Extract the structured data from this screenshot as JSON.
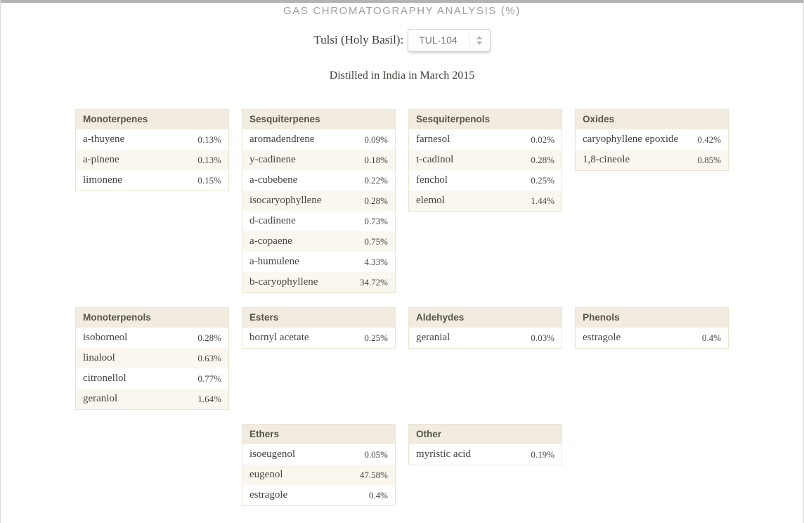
{
  "page": {
    "title": "GAS CHROMATOGRAPHY ANALYSIS (%)",
    "subtitle": "Distilled in India in March 2015"
  },
  "selector": {
    "label": "Tulsi (Holy Basil):",
    "value": "TUL-104"
  },
  "colors": {
    "header_beige": "#f1ecdf",
    "alt_row_cream": "#faf7ef",
    "table_border": "#e9e4d4",
    "title_gray": "#9e9e9e",
    "top_bar_gray": "#b3b3b3"
  },
  "tables": [
    {
      "title": "Monoterpenes",
      "row": 1,
      "col": 1,
      "rows": [
        {
          "name": "a-thuyene",
          "value": "0.13%"
        },
        {
          "name": "a-pinene",
          "value": "0.13%"
        },
        {
          "name": "limonene",
          "value": "0.15%"
        }
      ]
    },
    {
      "title": "Sesquiterpenes",
      "row": 1,
      "col": 2,
      "rows": [
        {
          "name": "aromadendrene",
          "value": "0.09%"
        },
        {
          "name": "y-cadinene",
          "value": "0.18%"
        },
        {
          "name": "a-cubebene",
          "value": "0.22%"
        },
        {
          "name": "isocaryophyllene",
          "value": "0.28%"
        },
        {
          "name": "d-cadinene",
          "value": "0.73%"
        },
        {
          "name": "a-copaene",
          "value": "0.75%"
        },
        {
          "name": "a-humulene",
          "value": "4.33%"
        },
        {
          "name": "b-caryophyllene",
          "value": "34.72%"
        }
      ]
    },
    {
      "title": "Sesquiterpenols",
      "row": 1,
      "col": 3,
      "rows": [
        {
          "name": "farnesol",
          "value": "0.02%"
        },
        {
          "name": "t-cadinol",
          "value": "0.28%"
        },
        {
          "name": "fenchol",
          "value": "0.25%"
        },
        {
          "name": "elemol",
          "value": "1.44%"
        }
      ]
    },
    {
      "title": "Oxides",
      "row": 1,
      "col": 4,
      "rows": [
        {
          "name": "caryophyllene epoxide",
          "value": "0.42%"
        },
        {
          "name": "1,8-cineole",
          "value": "0.85%"
        }
      ]
    },
    {
      "title": "Monoterpenols",
      "row": 2,
      "col": 1,
      "rows": [
        {
          "name": "isoborneol",
          "value": "0.28%"
        },
        {
          "name": "linalool",
          "value": "0.63%"
        },
        {
          "name": "citronellol",
          "value": "0.77%"
        },
        {
          "name": "geraniol",
          "value": "1.64%"
        }
      ]
    },
    {
      "title": "Esters",
      "row": 2,
      "col": 2,
      "rows": [
        {
          "name": "bornyl acetate",
          "value": "0.25%"
        }
      ]
    },
    {
      "title": "Aldehydes",
      "row": 2,
      "col": 3,
      "rows": [
        {
          "name": "geranial",
          "value": "0.03%"
        }
      ]
    },
    {
      "title": "Phenols",
      "row": 2,
      "col": 4,
      "rows": [
        {
          "name": "estragole",
          "value": "0.4%"
        }
      ]
    },
    {
      "title": "Ethers",
      "row": 3,
      "col": 2,
      "rows": [
        {
          "name": "isoeugenol",
          "value": "0.05%"
        },
        {
          "name": "eugenol",
          "value": "47.58%"
        },
        {
          "name": "estragole",
          "value": "0.4%"
        }
      ]
    },
    {
      "title": "Other",
      "row": 3,
      "col": 3,
      "rows": [
        {
          "name": "myristic acid",
          "value": "0.19%"
        }
      ]
    }
  ]
}
